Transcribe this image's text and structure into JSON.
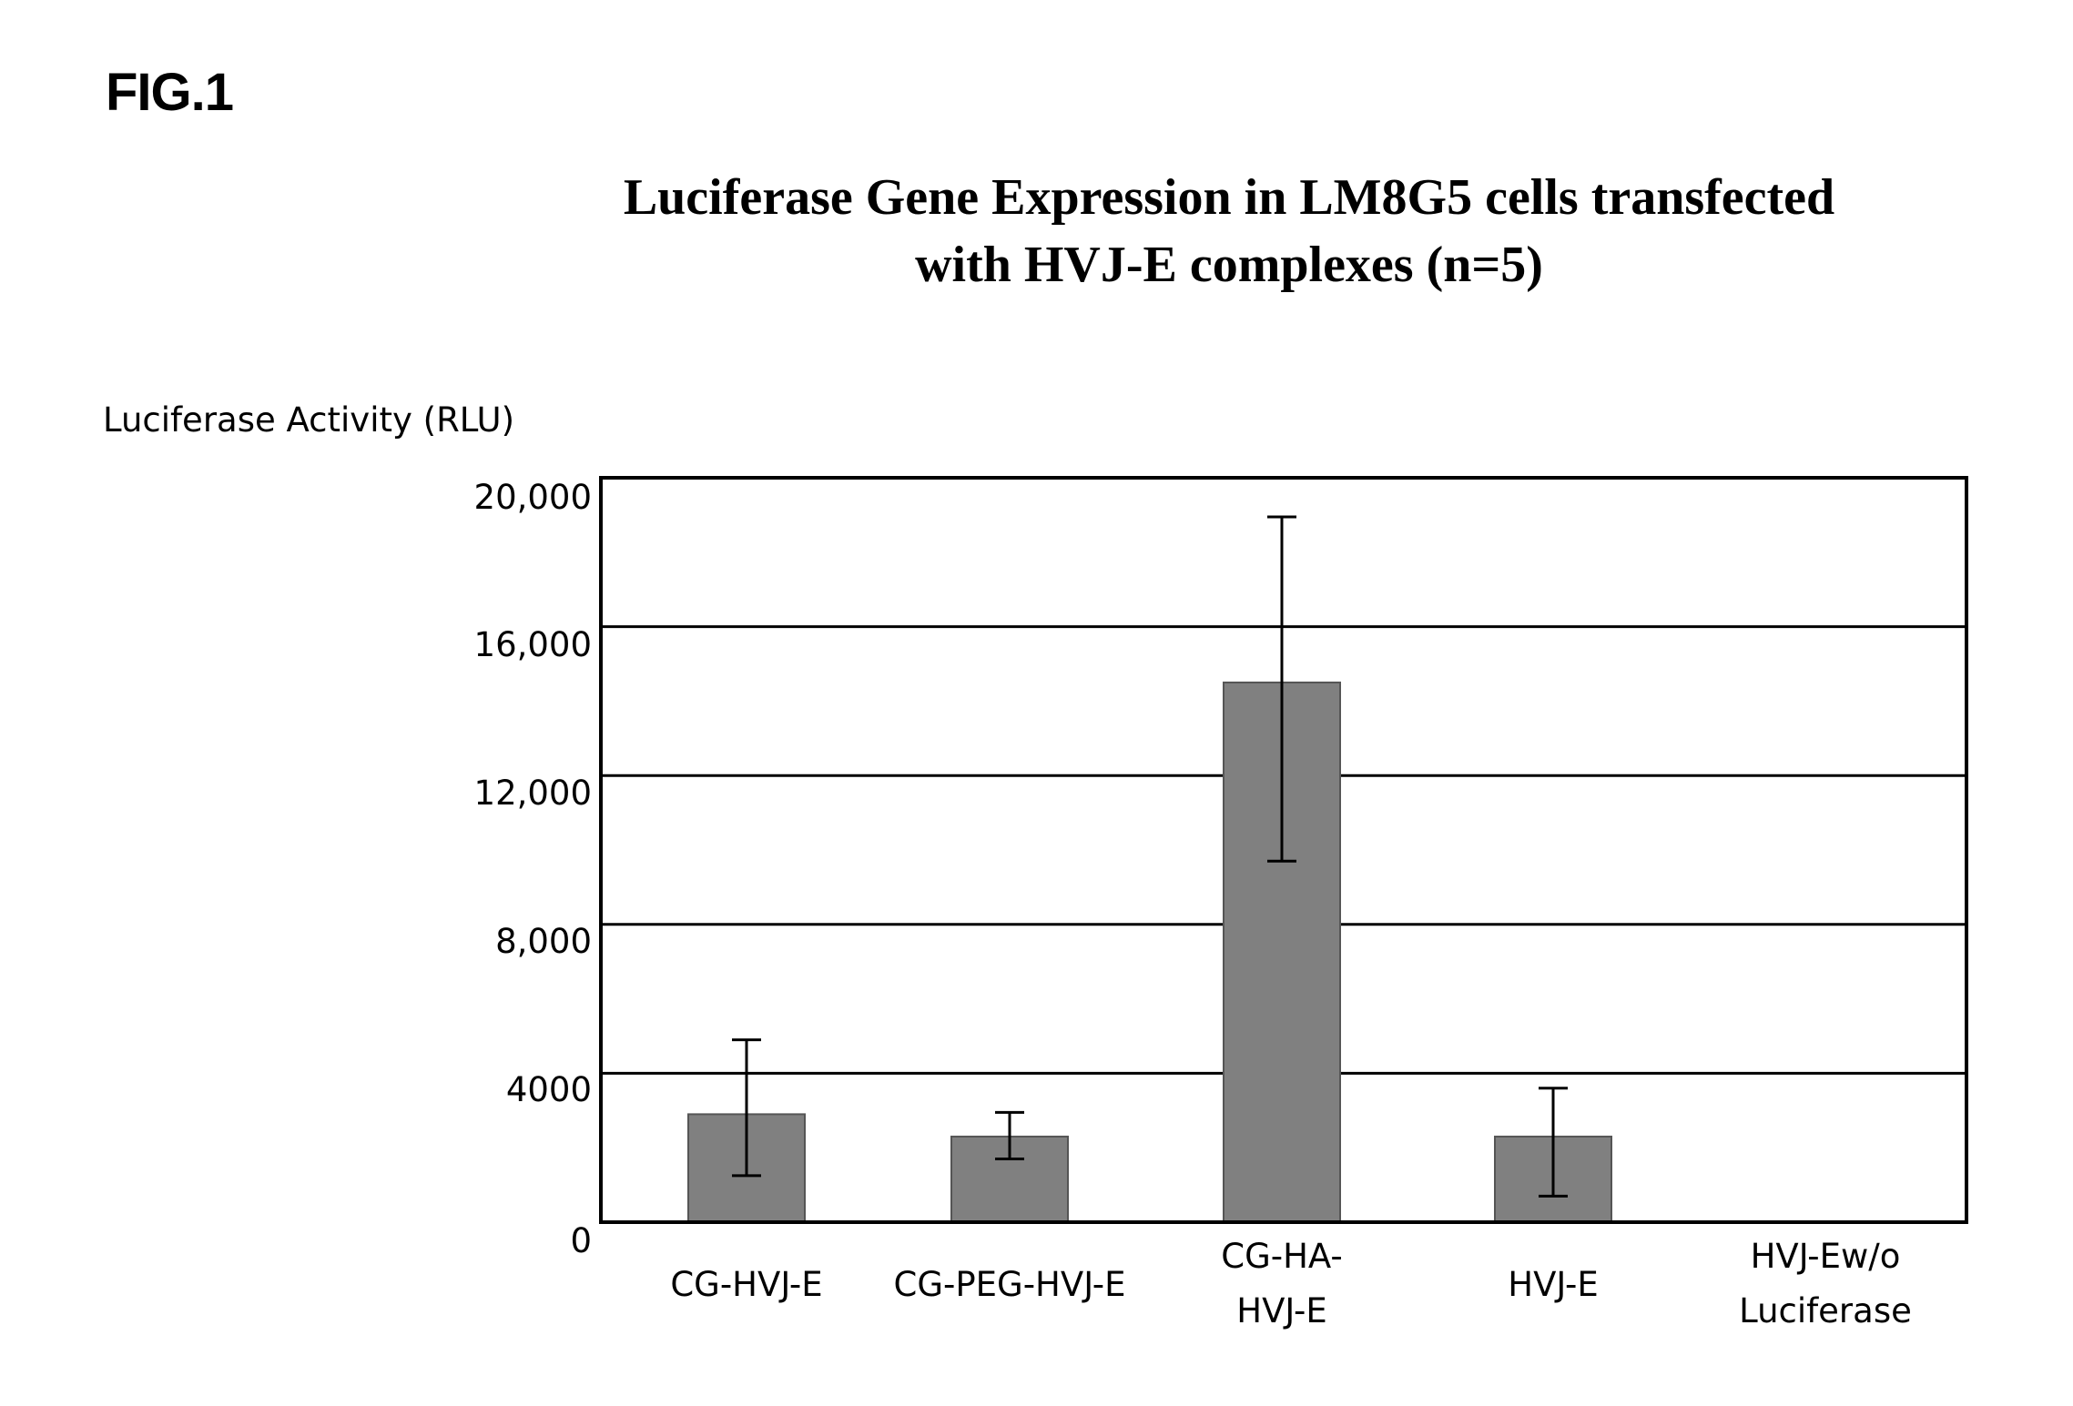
{
  "figure": {
    "label": "FIG.1"
  },
  "chart_data": {
    "type": "bar",
    "title_lines": [
      "Luciferase Gene Expression in LM8G5 cells transfected",
      "with HVJ-E complexes (n=5)"
    ],
    "ylabel": "Luciferase Activity (RLU)",
    "xlabel": "",
    "ylim": [
      0,
      20000
    ],
    "yticks": [
      0,
      4000,
      8000,
      12000,
      16000,
      20000
    ],
    "ytick_labels": [
      "0",
      "4000",
      "8,000",
      "12,000",
      "16,000",
      "20,000"
    ],
    "grid": true,
    "categories": [
      [
        "CG-HVJ-E"
      ],
      [
        "CG-PEG-HVJ-E"
      ],
      [
        "CG-HA-",
        "HVJ-E"
      ],
      [
        "HVJ-E"
      ],
      [
        "HVJ-Ew/o",
        "Luciferase"
      ]
    ],
    "values": [
      2900,
      2300,
      14500,
      2300,
      0
    ],
    "error_low": [
      1250,
      1700,
      9700,
      700,
      0
    ],
    "error_high": [
      4900,
      2950,
      18950,
      3600,
      0
    ],
    "colors": {
      "bar": "#808080",
      "axis": "#000000"
    }
  }
}
